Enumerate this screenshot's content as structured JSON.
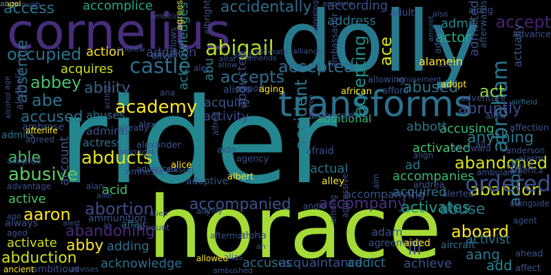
{
  "words": [
    {
      "text": "rider",
      "color": "#24868e"
    },
    {
      "text": "dolly",
      "color": "#27798e"
    },
    {
      "text": "horace",
      "color": "#a5db36"
    },
    {
      "text": "cornelius",
      "color": "#472d7b"
    },
    {
      "text": "transforms",
      "color": "#2c718e"
    },
    {
      "text": "abraham",
      "color": "#2a788e"
    },
    {
      "text": "abigail",
      "color": "#b2dd2d"
    },
    {
      "text": "castle",
      "color": "#2e6d8e"
    },
    {
      "text": "abbey",
      "color": "#4ac16d"
    },
    {
      "text": "academy",
      "color": "#fde725"
    },
    {
      "text": "abducts",
      "color": "#e2e418"
    },
    {
      "text": "abusive",
      "color": "#60ca60"
    },
    {
      "text": "able",
      "color": "#4ac16d"
    },
    {
      "text": "ability",
      "color": "#34618d"
    },
    {
      "text": "abandoned",
      "color": "#d8e219"
    },
    {
      "text": "abandon",
      "color": "#d0e11c"
    },
    {
      "text": "ordered",
      "color": "#3c508b"
    },
    {
      "text": "accepted",
      "color": "#2e6e8e"
    },
    {
      "text": "accepts",
      "color": "#2e6d8e"
    },
    {
      "text": "abused",
      "color": "#2d718e"
    },
    {
      "text": "abruptly",
      "color": "#3e4c8a"
    },
    {
      "text": "abortion",
      "color": "#3e4a89"
    },
    {
      "text": "accompanied",
      "color": "#3b528b"
    },
    {
      "text": "accompany",
      "color": "#46307e"
    },
    {
      "text": "abandoning",
      "color": "#482979"
    },
    {
      "text": "aboard",
      "color": "#fde725"
    },
    {
      "text": "activates",
      "color": "#1f9a8a"
    },
    {
      "text": "anything",
      "color": "#2a778e"
    },
    {
      "text": "accidentally",
      "color": "#2f6c8e"
    },
    {
      "text": "access",
      "color": "#2d718e"
    },
    {
      "text": "accomplice",
      "color": "#22a785"
    },
    {
      "text": "according",
      "color": "#3b528b"
    },
    {
      "text": "accept",
      "color": "#482173"
    },
    {
      "text": "ace",
      "color": "#d8e219"
    },
    {
      "text": "actor",
      "color": "#22a785"
    },
    {
      "text": "admit",
      "color": "#24878e"
    },
    {
      "text": "address",
      "color": "#2a778e"
    },
    {
      "text": "occupied",
      "color": "#2c718e"
    },
    {
      "text": "action",
      "color": "#fde725"
    },
    {
      "text": "addition",
      "color": "#3e4a89"
    },
    {
      "text": "acquires",
      "color": "#d0e11c"
    },
    {
      "text": "abe",
      "color": "#2c718e"
    },
    {
      "text": "accused",
      "color": "#2d708e"
    },
    {
      "text": "absence",
      "color": "#2d708e"
    },
    {
      "text": "abu",
      "color": "#27808e"
    },
    {
      "text": "abducted",
      "color": "#3e4a89"
    },
    {
      "text": "acknowledges",
      "color": "#24878e"
    },
    {
      "text": "accident",
      "color": "#2a788e"
    },
    {
      "text": "accepting",
      "color": "#20928c"
    },
    {
      "text": "activity",
      "color": "#3e4a89"
    },
    {
      "text": "acquire",
      "color": "#3b528b"
    },
    {
      "text": "accusing",
      "color": "#35b779"
    },
    {
      "text": "activated",
      "color": "#4ac16d"
    },
    {
      "text": "abbott",
      "color": "#2a778e"
    },
    {
      "text": "act",
      "color": "#95d840"
    },
    {
      "text": "admitted",
      "color": "#3e4c8a"
    },
    {
      "text": "alamein",
      "color": "#fde725"
    },
    {
      "text": "abuse",
      "color": "#2a788e"
    },
    {
      "text": "activist",
      "color": "#2c718e"
    },
    {
      "text": "aang",
      "color": "#2a788e"
    },
    {
      "text": "achieve",
      "color": "#3b528b"
    },
    {
      "text": "add",
      "color": "#24878e"
    },
    {
      "text": "across",
      "color": "#2c718e"
    },
    {
      "text": "actually",
      "color": "#3b528b"
    },
    {
      "text": "abuses",
      "color": "#2c718e"
    },
    {
      "text": "accuses",
      "color": "#2c718e"
    },
    {
      "text": "acquaintance",
      "color": "#3b528b"
    },
    {
      "text": "addict",
      "color": "#2c718e"
    },
    {
      "text": "acknowledge",
      "color": "#2c718e"
    },
    {
      "text": "abduction",
      "color": "#d0e11c"
    },
    {
      "text": "abby",
      "color": "#fde725"
    },
    {
      "text": "aaron",
      "color": "#fde725"
    },
    {
      "text": "activate",
      "color": "#d0e11c"
    },
    {
      "text": "adding",
      "color": "#2c718e"
    },
    {
      "text": "acid",
      "color": "#4ac16d"
    },
    {
      "text": "accompanies",
      "color": "#35b779"
    },
    {
      "text": "acquired",
      "color": "#2c718e"
    },
    {
      "text": "ad",
      "color": "#2c718e"
    },
    {
      "text": "actual",
      "color": "#2c718e"
    },
    {
      "text": "account",
      "color": "#3b528b"
    },
    {
      "text": "actress",
      "color": "#2c718e"
    },
    {
      "text": "accompanying",
      "color": "#3b528b"
    },
    {
      "text": "active",
      "color": "#4ac16d"
    },
    {
      "text": "admiral",
      "color": "#3b528b"
    },
    {
      "text": "additional",
      "color": "#35b779"
    },
    {
      "text": "admits",
      "color": "#2c718e"
    },
    {
      "text": "ill",
      "color": "#3b528b"
    },
    {
      "text": "adam",
      "color": "#3b528b"
    },
    {
      "text": "affair",
      "color": "#2c718e"
    },
    {
      "text": "aircraft",
      "color": "#2c718e"
    },
    {
      "text": "affect",
      "color": "#3b528b"
    },
    {
      "text": "ahead",
      "color": "#3b528b"
    },
    {
      "text": "alarm",
      "color": "#3b528b"
    },
    {
      "text": "affection",
      "color": "#3b528b"
    },
    {
      "text": "advance",
      "color": "#3b528b"
    },
    {
      "text": "afterwards",
      "color": "#3b528b"
    },
    {
      "text": "along",
      "color": "#3b528b"
    },
    {
      "text": "adult",
      "color": "#3b528b"
    },
    {
      "text": "agrees",
      "color": "#d0e11c"
    },
    {
      "text": "albright",
      "color": "#3b528b"
    },
    {
      "text": "airplane",
      "color": "#3b528b"
    },
    {
      "text": "alternate",
      "color": "#3b528b"
    },
    {
      "text": "amulet",
      "color": "#3b528b"
    },
    {
      "text": "advice",
      "color": "#3b528b"
    },
    {
      "text": "agreeing",
      "color": "#3b528b"
    },
    {
      "text": "ambassador",
      "color": "#3b528b"
    },
    {
      "text": "alliance",
      "color": "#3b528b"
    },
    {
      "text": "amid",
      "color": "#3b528b"
    },
    {
      "text": "amends",
      "color": "#3b528b"
    },
    {
      "text": "amusement",
      "color": "#3b528b"
    },
    {
      "text": "allowing",
      "color": "#3b528b"
    },
    {
      "text": "adopt",
      "color": "#fde725"
    },
    {
      "text": "adventure",
      "color": "#3b528b"
    },
    {
      "text": "airfield",
      "color": "#2c718e"
    },
    {
      "text": "american",
      "color": "#3b528b"
    },
    {
      "text": "african",
      "color": "#fde725"
    },
    {
      "text": "afford",
      "color": "#3b528b"
    },
    {
      "text": "ali",
      "color": "#3b528b"
    },
    {
      "text": "allen",
      "color": "#3b528b"
    },
    {
      "text": "ambrose",
      "color": "#3b528b"
    },
    {
      "text": "afterlife",
      "color": "#fde725"
    },
    {
      "text": "agreed",
      "color": "#3b528b"
    },
    {
      "text": "adopted",
      "color": "#3b528b"
    },
    {
      "text": "advantage",
      "color": "#3b528b"
    },
    {
      "text": "advanced",
      "color": "#3b528b"
    },
    {
      "text": "amnesia",
      "color": "#3b528b"
    },
    {
      "text": "allison",
      "color": "#3b528b"
    },
    {
      "text": "adoptive",
      "color": "#3b528b"
    },
    {
      "text": "alice",
      "color": "#fde725"
    },
    {
      "text": "aide",
      "color": "#3b528b"
    },
    {
      "text": "agency",
      "color": "#3b528b"
    },
    {
      "text": "afraid",
      "color": "#3b528b"
    },
    {
      "text": "alley",
      "color": "#fde725"
    },
    {
      "text": "albert",
      "color": "#fde725"
    },
    {
      "text": "aim",
      "color": "#3b528b"
    },
    {
      "text": "andrea",
      "color": "#3b528b"
    },
    {
      "text": "alerted",
      "color": "#3b528b"
    },
    {
      "text": "ambulance",
      "color": "#3b528b"
    },
    {
      "text": "america",
      "color": "#3b528b"
    },
    {
      "text": "almost",
      "color": "#3b528b"
    },
    {
      "text": "align",
      "color": "#3b528b"
    },
    {
      "text": "afterward",
      "color": "#3b528b"
    },
    {
      "text": "anderson",
      "color": "#3b528b"
    },
    {
      "text": "alongside",
      "color": "#3b528b"
    },
    {
      "text": "agent",
      "color": "#3b528b"
    },
    {
      "text": "always",
      "color": "#3b528b"
    },
    {
      "text": "aged",
      "color": "#3b528b"
    },
    {
      "text": "alert",
      "color": "#3b528b"
    },
    {
      "text": "ammunition",
      "color": "#3b528b"
    },
    {
      "text": "al",
      "color": "#3b528b"
    },
    {
      "text": "amount",
      "color": "#3b528b"
    },
    {
      "text": "ally",
      "color": "#3b528b"
    },
    {
      "text": "alien",
      "color": "#3b528b"
    },
    {
      "text": "allie",
      "color": "#3b528b"
    },
    {
      "text": "alan",
      "color": "#3b528b"
    },
    {
      "text": "ago",
      "color": "#3b528b"
    },
    {
      "text": "andy",
      "color": "#3b528b"
    },
    {
      "text": "andie",
      "color": "#3b528b"
    },
    {
      "text": "aftermath",
      "color": "#3b528b"
    },
    {
      "text": "alpha",
      "color": "#3b528b"
    },
    {
      "text": "ah",
      "color": "#3b528b"
    },
    {
      "text": "among",
      "color": "#3b528b"
    },
    {
      "text": "aggressive",
      "color": "#3b528b"
    },
    {
      "text": "agreement",
      "color": "#3b528b"
    },
    {
      "text": "aided",
      "color": "#fde725"
    },
    {
      "text": "allowed",
      "color": "#fde725"
    },
    {
      "text": "alias",
      "color": "#3b528b"
    },
    {
      "text": "ambushed",
      "color": "#3b528b"
    },
    {
      "text": "ambitious",
      "color": "#3b528b"
    },
    {
      "text": "ancient",
      "color": "#fde725"
    },
    {
      "text": "advises",
      "color": "#3b528b"
    },
    {
      "text": "although",
      "color": "#3b528b"
    },
    {
      "text": "ambition",
      "color": "#3b528b"
    },
    {
      "text": "also",
      "color": "#3b528b"
    },
    {
      "text": "alter",
      "color": "#3b528b"
    },
    {
      "text": "andrew",
      "color": "#3b528b"
    },
    {
      "text": "ambush",
      "color": "#3b528b"
    },
    {
      "text": "allows",
      "color": "#3b528b"
    },
    {
      "text": "altar",
      "color": "#3b528b"
    },
    {
      "text": "allow",
      "color": "#3b528b"
    },
    {
      "text": "alec",
      "color": "#3b528b"
    },
    {
      "text": "alive",
      "color": "#3b528b"
    },
    {
      "text": "alison",
      "color": "#3b528b"
    },
    {
      "text": "airport",
      "color": "#3b528b"
    },
    {
      "text": "aging",
      "color": "#fde725"
    },
    {
      "text": "age",
      "color": "#3b528b"
    },
    {
      "text": "alcoholic",
      "color": "#3b528b"
    },
    {
      "text": "ana",
      "color": "#3b528b"
    },
    {
      "text": "acting",
      "color": "#3b528b"
    },
    {
      "text": "alex",
      "color": "#3b528b"
    },
    {
      "text": "already",
      "color": "#3b528b"
    },
    {
      "text": "alfred",
      "color": "#3b528b"
    },
    {
      "text": "agree",
      "color": "#3b528b"
    },
    {
      "text": "alcohol",
      "color": "#3b528b"
    },
    {
      "text": "amongst",
      "color": "#3b528b"
    },
    {
      "text": "alexander",
      "color": "#3b528b"
    },
    {
      "text": "angel",
      "color": "#fde725"
    },
    {
      "text": "air",
      "color": "#3b528b"
    }
  ]
}
